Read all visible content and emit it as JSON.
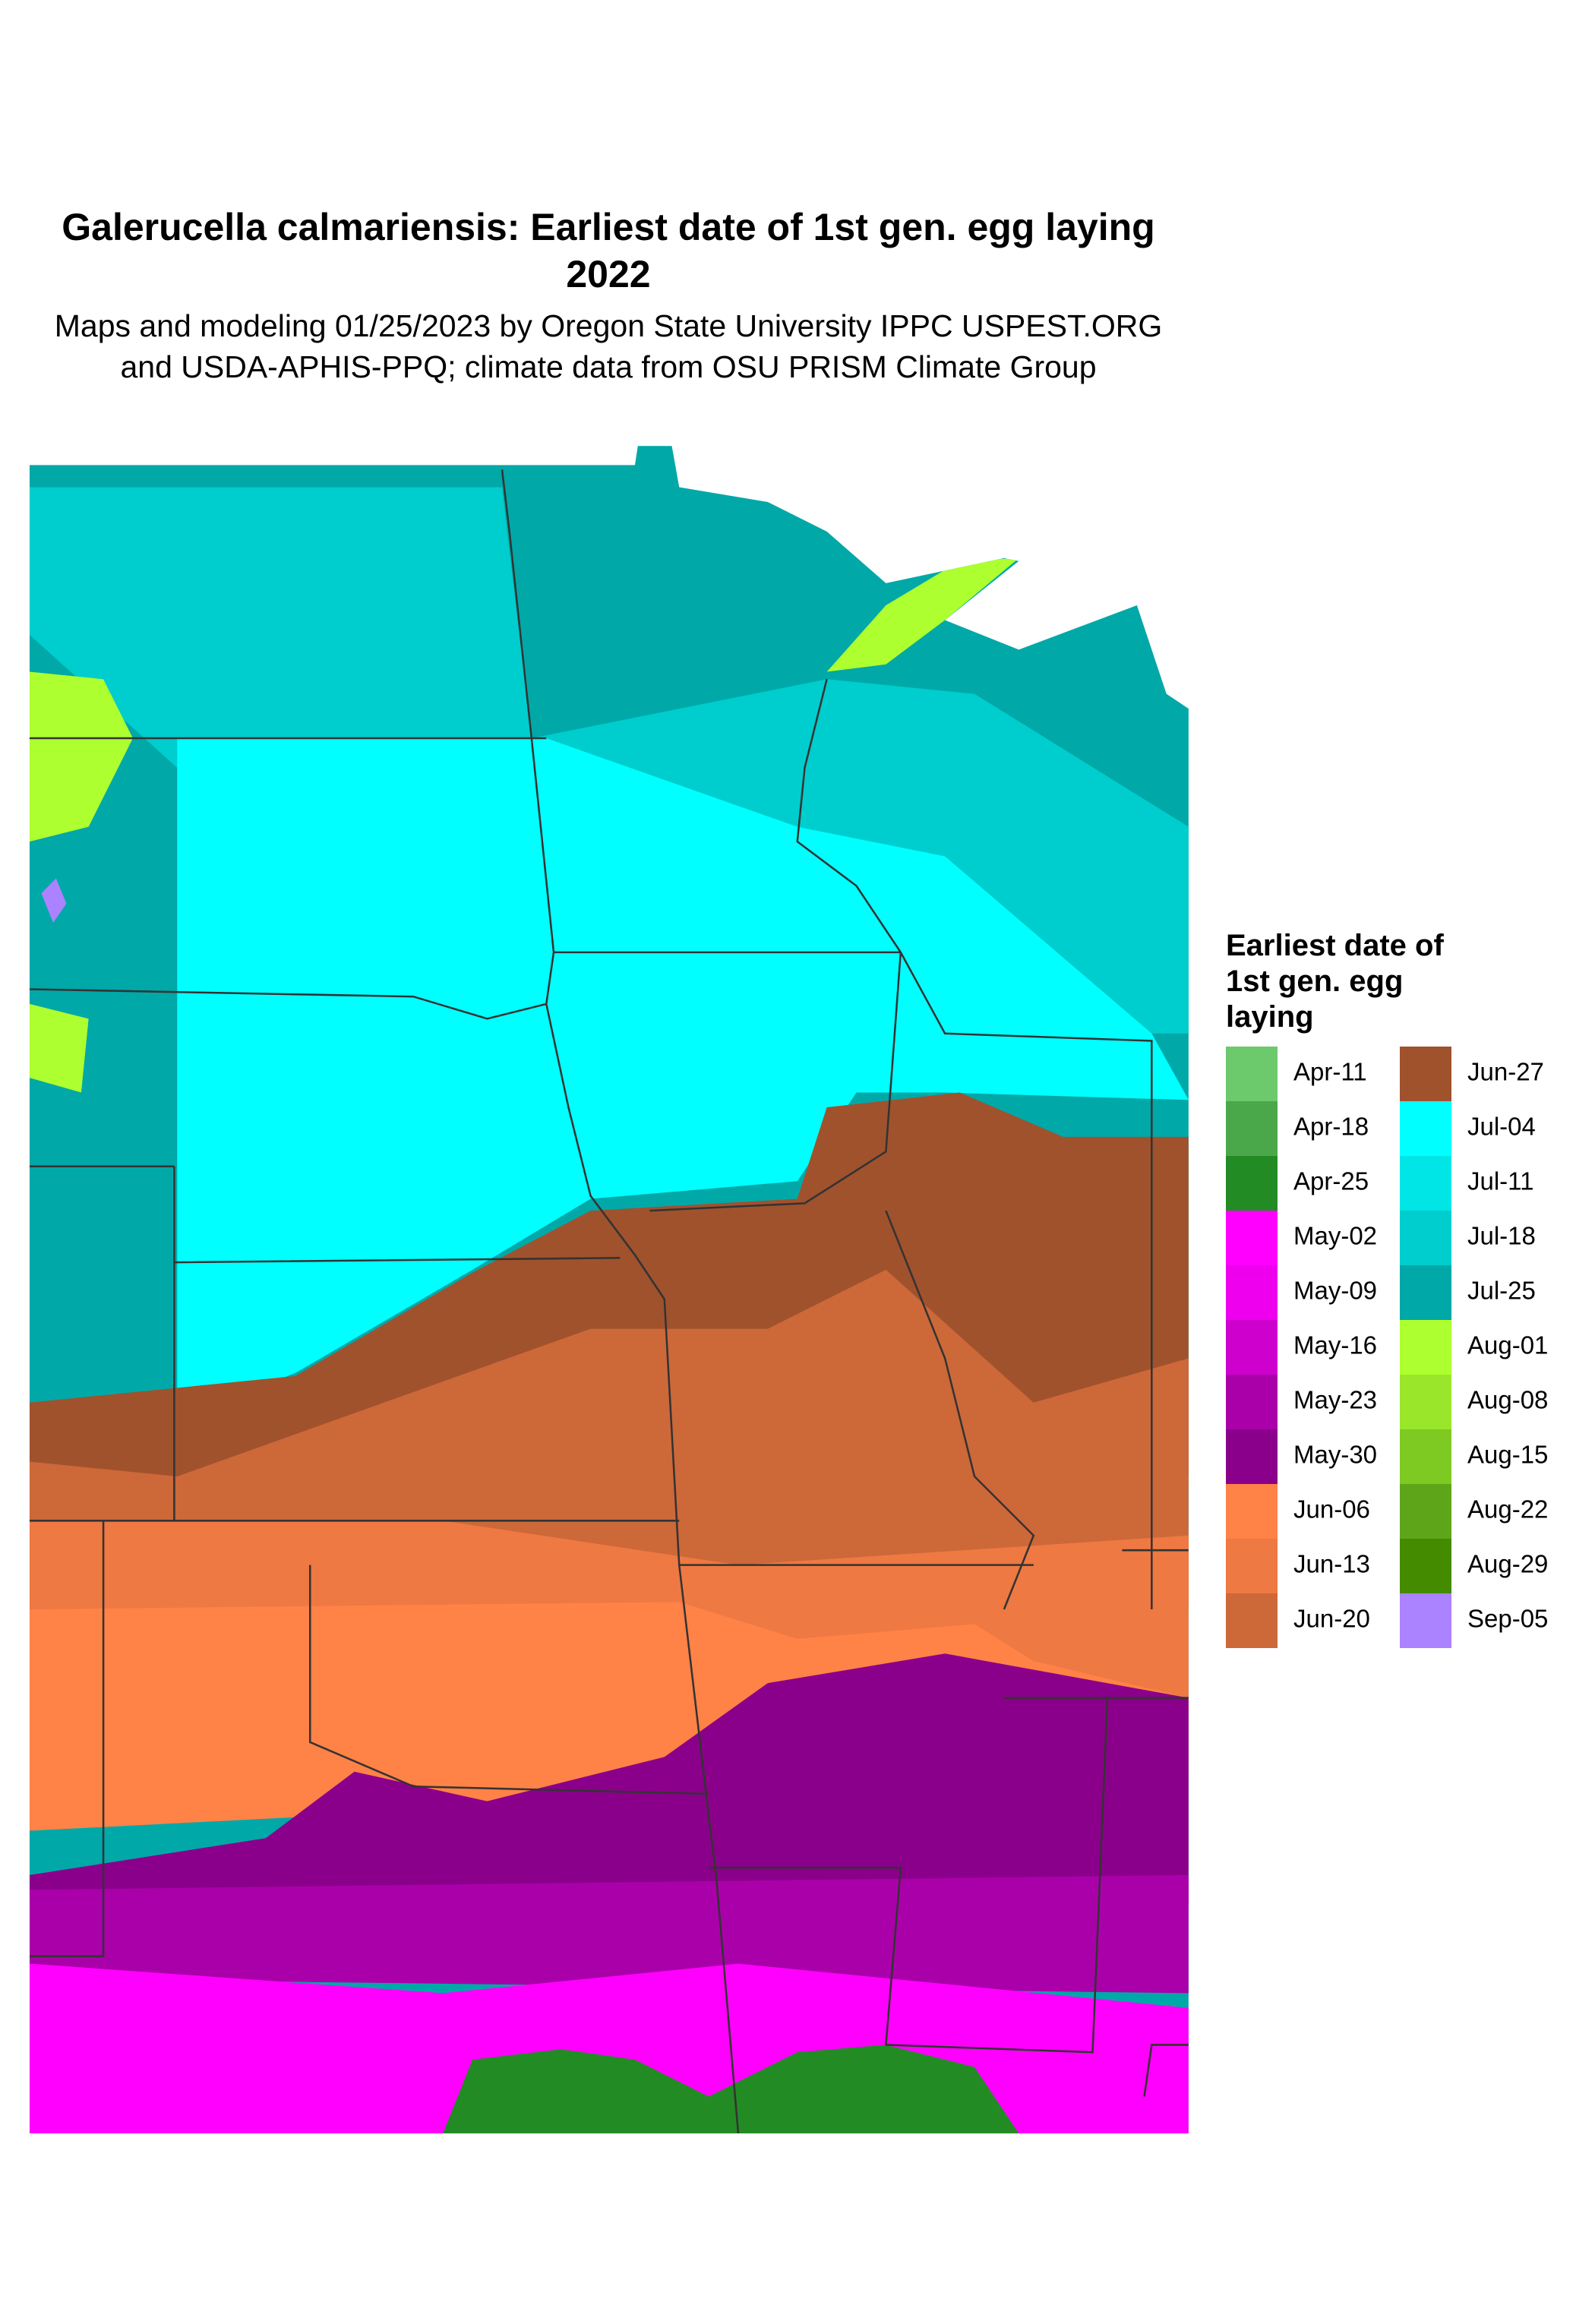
{
  "title": "Galerucella calmariensis: Earliest date of 1st gen. egg laying 2022",
  "subtitle": "Maps and modeling 01/25/2023 by Oregon State University IPPC USPEST.ORG and USDA-APHIS-PPQ; climate data from OSU PRISM Climate Group",
  "legend": {
    "title": "Earliest date of 1st gen. egg laying",
    "items": [
      {
        "label": "Apr-11",
        "color": "#6cc96c"
      },
      {
        "label": "Apr-18",
        "color": "#4aa84a"
      },
      {
        "label": "Apr-25",
        "color": "#238b23"
      },
      {
        "label": "May-02",
        "color": "#ff00ff"
      },
      {
        "label": "May-09",
        "color": "#ee00ee"
      },
      {
        "label": "May-16",
        "color": "#cd00cd"
      },
      {
        "label": "May-23",
        "color": "#aa00aa"
      },
      {
        "label": "May-30",
        "color": "#8b008b"
      },
      {
        "label": "Jun-06",
        "color": "#ff8247"
      },
      {
        "label": "Jun-13",
        "color": "#ee7942"
      },
      {
        "label": "Jun-20",
        "color": "#cd6839"
      },
      {
        "label": "Jun-27",
        "color": "#a0522d"
      },
      {
        "label": "Jul-04",
        "color": "#00ffff"
      },
      {
        "label": "Jul-11",
        "color": "#00e5e5"
      },
      {
        "label": "Jul-18",
        "color": "#00cdcd"
      },
      {
        "label": "Jul-25",
        "color": "#00a8a8"
      },
      {
        "label": "Aug-01",
        "color": "#adff2f"
      },
      {
        "label": "Aug-08",
        "color": "#9ae62a"
      },
      {
        "label": "Aug-15",
        "color": "#7fc923"
      },
      {
        "label": "Aug-22",
        "color": "#5fa51a"
      },
      {
        "label": "Aug-29",
        "color": "#458b00"
      },
      {
        "label": "Sep-05",
        "color": "#ab82ff"
      }
    ]
  }
}
